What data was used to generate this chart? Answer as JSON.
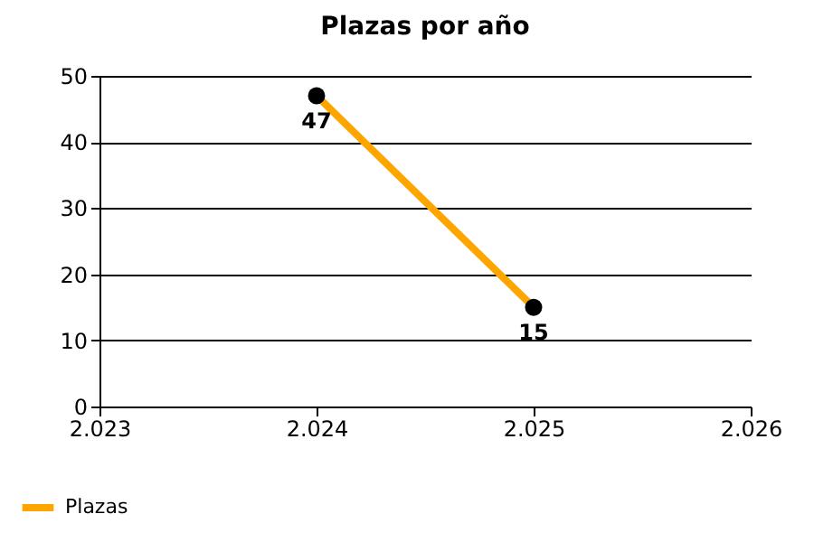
{
  "chart_data": {
    "type": "line",
    "title": "Plazas por año",
    "x": [
      2024,
      2025
    ],
    "series": [
      {
        "name": "Plazas",
        "color": "#ffa500",
        "values": [
          47,
          15
        ]
      }
    ],
    "xlim": [
      2023,
      2026
    ],
    "xticks": [
      {
        "value": 2023,
        "label": "2.023"
      },
      {
        "value": 2024,
        "label": "2.024"
      },
      {
        "value": 2025,
        "label": "2.025"
      },
      {
        "value": 2026,
        "label": "2.026"
      }
    ],
    "ylim": [
      0,
      50
    ],
    "yticks": [
      0,
      10,
      20,
      30,
      40,
      50
    ],
    "grid": "y",
    "legend": "bottom left",
    "marker": "circle",
    "line_style": "solid",
    "data_labels": true
  }
}
